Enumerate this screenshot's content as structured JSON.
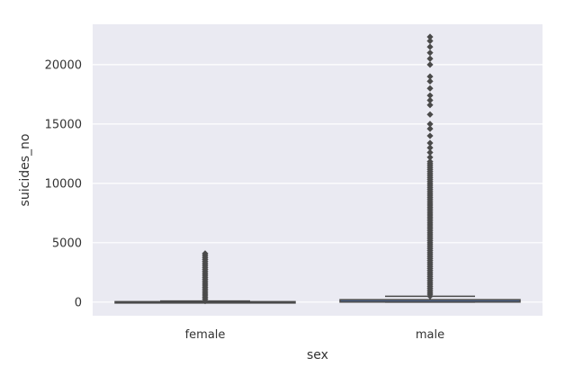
{
  "chart_data": {
    "type": "box",
    "title": "",
    "xlabel": "sex",
    "ylabel": "suicides_no",
    "categories": [
      "female",
      "male"
    ],
    "ylim": [
      -1150,
      23400
    ],
    "yticks": [
      0,
      5000,
      10000,
      15000,
      20000
    ],
    "ytick_labels": [
      "0",
      "5000",
      "10000",
      "15000",
      "20000"
    ],
    "grid": true,
    "boxes": [
      {
        "category": "female",
        "min": 0,
        "q1": 1,
        "median": 7,
        "q3": 36,
        "max": 88,
        "outliers_range": [
          90,
          4150
        ],
        "outliers_sample": [
          120,
          300,
          600,
          900,
          1200,
          1500,
          1800,
          2100,
          2400,
          2700,
          3000,
          3300,
          3600,
          3800,
          4000,
          4150
        ]
      },
      {
        "category": "male",
        "min": 0,
        "q1": 5,
        "median": 36,
        "q3": 200,
        "max": 490,
        "outliers_range": [
          500,
          22340
        ],
        "outliers_sample": [
          600,
          1000,
          2000,
          3000,
          4000,
          5000,
          6000,
          7000,
          8000,
          9000,
          10000,
          11000,
          11800,
          12200,
          12600,
          13000,
          13400,
          14000,
          14600,
          15000,
          15800,
          16600,
          17000,
          17400,
          18000,
          18600,
          19000,
          20000,
          20500,
          21000,
          21500,
          22000,
          22340
        ]
      }
    ],
    "colors": {
      "background": "#eaeaf2",
      "grid": "#ffffff",
      "box_fill": "#4c72b0",
      "box_line": "#4a4a4a",
      "text": "#333333"
    }
  }
}
